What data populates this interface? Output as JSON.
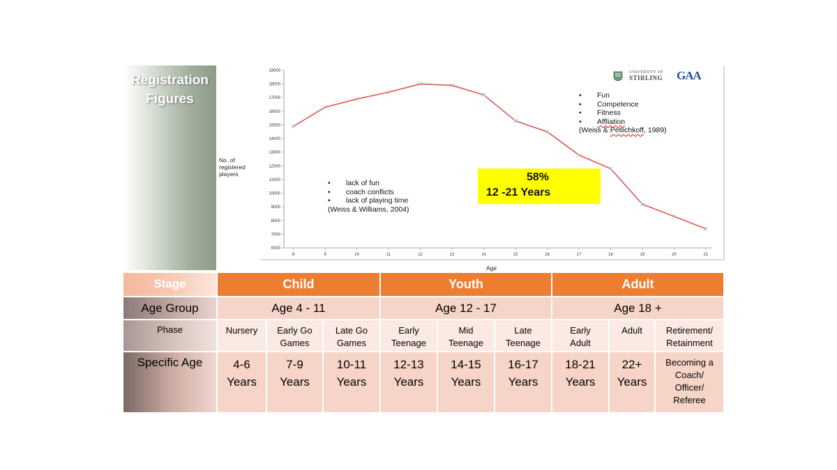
{
  "side": {
    "registration_title_line1": "Registration",
    "registration_title_line2": "Figures"
  },
  "chart_data": {
    "type": "line",
    "x": [
      8,
      9,
      10,
      11,
      12,
      13,
      14,
      15,
      16,
      17,
      18,
      19,
      20,
      21
    ],
    "series": [
      {
        "values": [
          14900,
          16300,
          16900,
          17400,
          18000,
          17900,
          17200,
          15300,
          14500,
          12800,
          11800,
          9200,
          8300,
          7400
        ]
      }
    ],
    "yticks": [
      6000,
      7000,
      8000,
      9000,
      10000,
      11000,
      12000,
      13000,
      14000,
      15000,
      16000,
      17000,
      18000,
      19000
    ],
    "ylim": [
      6000,
      19000
    ],
    "xlabel": "Age",
    "ylabel_line1": "No. of",
    "ylabel_line2": "registered",
    "ylabel_line3": "players",
    "grid": false,
    "line_color": "#e0554e",
    "marker_color": "#a9b6cf"
  },
  "notes": {
    "left": {
      "items": [
        "lack of fun",
        "coach conflicts",
        "lack of playing time"
      ],
      "citation": "(Weiss & Williams, 2004)"
    },
    "right": {
      "items": [
        "Fun",
        "Competence",
        "Fitness",
        "Affliation"
      ],
      "citation_pre": "(Weiss & ",
      "citation_name": "Petlichkoff",
      "citation_post": ", 1989)"
    }
  },
  "highlight": {
    "percent": "58%",
    "range": "12 -21 Years",
    "color": "#ffff00"
  },
  "logo": {
    "university_prefix": "UNIVERSITY OF",
    "university_name": "STIRLING",
    "org": "GAA"
  },
  "table": {
    "stage_label": "Stage",
    "age_group_label": "Age Group",
    "phase_label": "Phase",
    "specific_age_label": "Specific Age",
    "stages": [
      "Child",
      "Youth",
      "Adult"
    ],
    "age_groups": [
      "Age 4 - 11",
      "Age 12 - 17",
      "Age 18 +"
    ],
    "phases": [
      [
        "Nursery"
      ],
      [
        "Early Go",
        "Games"
      ],
      [
        "Late Go",
        "Games"
      ],
      [
        "Early",
        "Teenage"
      ],
      [
        "Mid",
        "Teenage"
      ],
      [
        "Late",
        "Teenage"
      ],
      [
        "Early",
        "Adult"
      ],
      [
        "Adult"
      ],
      [
        "Retirement/",
        "Retainment"
      ]
    ],
    "specific_ages": [
      [
        "4-6",
        "Years"
      ],
      [
        "7-9",
        "Years"
      ],
      [
        "10-11",
        "Years"
      ],
      [
        "12-13",
        "Years"
      ],
      [
        "14-15",
        "Years"
      ],
      [
        "16-17",
        "Years"
      ],
      [
        "18-21",
        "Years"
      ],
      [
        "22+",
        "Years"
      ],
      [
        "Becoming a",
        "Coach/",
        "Officer/",
        "Referee"
      ]
    ],
    "accent_color": "#ed7d31"
  }
}
